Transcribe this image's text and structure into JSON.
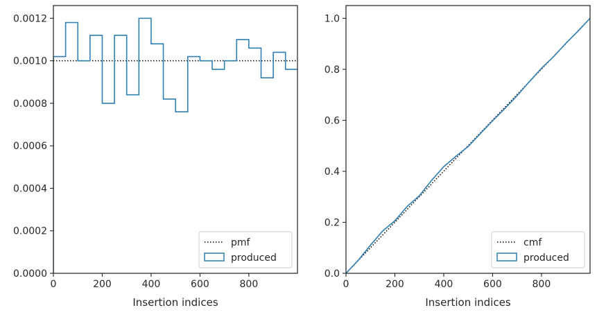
{
  "colors": {
    "series": "#2f7fb0",
    "reference": "#000000",
    "axes": "#262626",
    "legend_border": "#cccccc"
  },
  "chart_data": [
    {
      "type": "step",
      "title": "",
      "xlabel": "Insertion indices",
      "ylabel": "",
      "xlim": [
        0,
        999
      ],
      "ylim": [
        0,
        0.00126
      ],
      "grid": false,
      "legend_placement": "bottom-right",
      "xticks": [
        0,
        200,
        400,
        600,
        800
      ],
      "xtick_labels": [
        "0",
        "200",
        "400",
        "600",
        "800"
      ],
      "yticks": [
        0,
        0.0002,
        0.0004,
        0.0006,
        0.0008,
        0.001,
        0.0012
      ],
      "ytick_labels": [
        "0.0000",
        "0.0002",
        "0.0004",
        "0.0006",
        "0.0008",
        "0.0010",
        "0.0012"
      ],
      "bin_edges": [
        0,
        50,
        100,
        150,
        200,
        250,
        300,
        350,
        400,
        450,
        500,
        550,
        600,
        650,
        700,
        750,
        800,
        850,
        900,
        950,
        1000
      ],
      "series": [
        {
          "name": "produced",
          "style": "step-outline",
          "values": [
            0.00102,
            0.00118,
            0.001,
            0.00112,
            0.0008,
            0.00112,
            0.00084,
            0.0012,
            0.00108,
            0.00082,
            0.00076,
            0.00102,
            0.001,
            0.00096,
            0.001,
            0.0011,
            0.00106,
            0.00092,
            0.00104,
            0.00096
          ]
        },
        {
          "name": "pmf",
          "style": "dotted",
          "x": [
            0,
            999
          ],
          "y": [
            0.001,
            0.001
          ]
        }
      ],
      "legend": [
        "pmf",
        "produced"
      ]
    },
    {
      "type": "line",
      "title": "",
      "xlabel": "Insertion indices",
      "ylabel": "",
      "xlim": [
        0,
        999
      ],
      "ylim": [
        0,
        1.05
      ],
      "grid": false,
      "legend_placement": "bottom-right",
      "xticks": [
        0,
        200,
        400,
        600,
        800
      ],
      "xtick_labels": [
        "0",
        "200",
        "400",
        "600",
        "800"
      ],
      "yticks": [
        0,
        0.2,
        0.4,
        0.6,
        0.8,
        1.0
      ],
      "ytick_labels": [
        "0.0",
        "0.2",
        "0.4",
        "0.6",
        "0.8",
        "1.0"
      ],
      "series": [
        {
          "name": "produced",
          "style": "solid",
          "x": [
            0,
            50,
            100,
            150,
            200,
            250,
            300,
            350,
            400,
            450,
            500,
            550,
            600,
            650,
            700,
            750,
            800,
            850,
            900,
            950,
            999
          ],
          "y": [
            0.0,
            0.051,
            0.11,
            0.166,
            0.206,
            0.262,
            0.304,
            0.364,
            0.418,
            0.459,
            0.497,
            0.548,
            0.598,
            0.646,
            0.696,
            0.751,
            0.804,
            0.85,
            0.902,
            0.95,
            1.0
          ]
        },
        {
          "name": "cmf",
          "style": "dotted",
          "x": [
            0,
            999
          ],
          "y": [
            0.0,
            1.0
          ]
        }
      ],
      "legend": [
        "cmf",
        "produced"
      ]
    }
  ]
}
